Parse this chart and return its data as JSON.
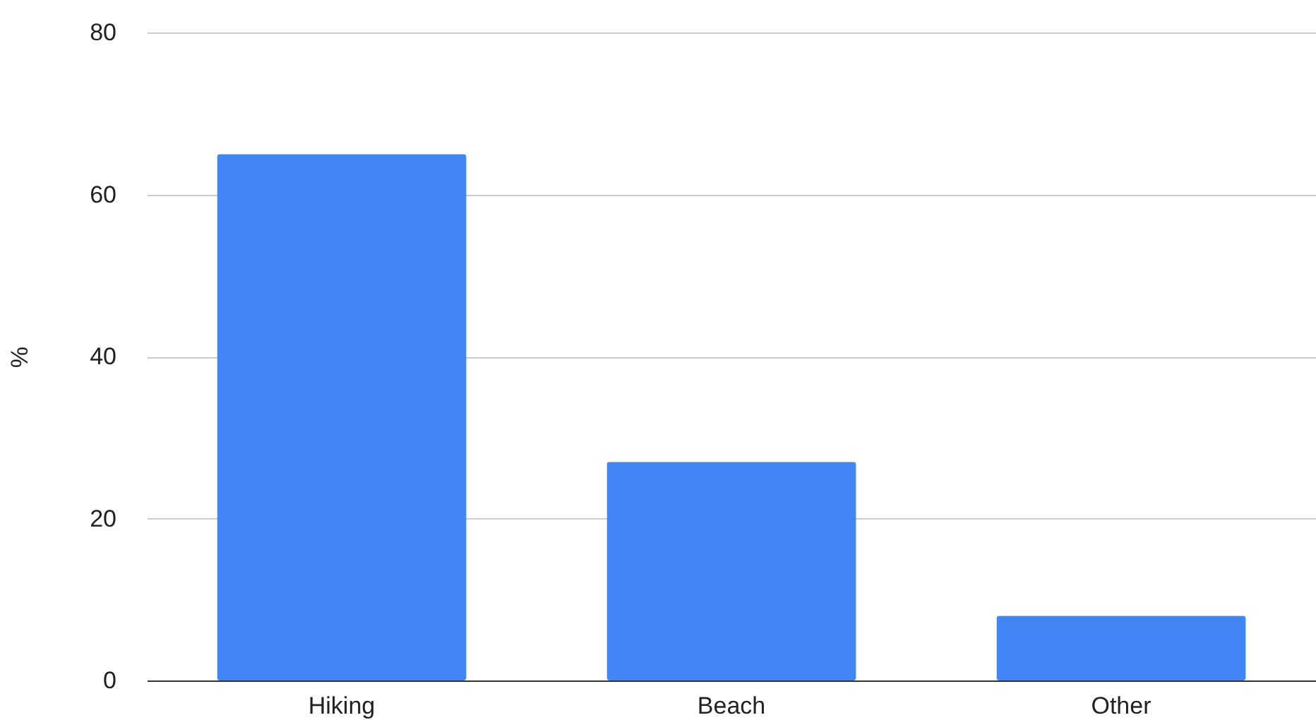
{
  "chart_data": {
    "type": "bar",
    "ylabel": "%",
    "categories": [
      "Hiking",
      "Beach",
      "Other"
    ],
    "values": [
      65,
      27,
      8
    ],
    "color": "#4285f4",
    "ylim": [
      0,
      80
    ],
    "yticks": [
      0,
      20,
      40,
      60,
      80
    ],
    "grid": "y"
  }
}
